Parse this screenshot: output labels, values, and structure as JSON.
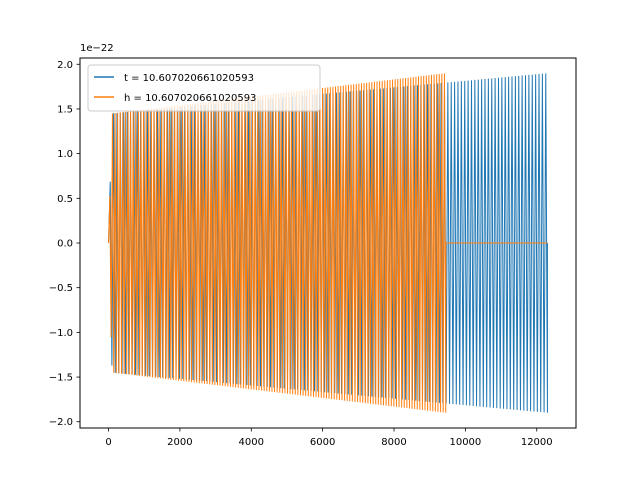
{
  "chart_data": {
    "type": "line",
    "title": "",
    "xlabel": "",
    "ylabel": "",
    "y_offset_label": "1e−22",
    "xlim": [
      -800,
      13100
    ],
    "ylim": [
      -2.07,
      2.07
    ],
    "x_ticks": [
      0,
      2000,
      4000,
      6000,
      8000,
      10000,
      12000
    ],
    "x_tick_labels": [
      "0",
      "2000",
      "4000",
      "6000",
      "8000",
      "10000",
      "12000"
    ],
    "y_ticks": [
      2.0,
      1.5,
      1.0,
      0.5,
      0.0,
      -0.5,
      -1.0,
      -1.5,
      -2.0
    ],
    "y_tick_labels": [
      "2.0",
      "1.5",
      "1.0",
      "0.5",
      "0.0",
      "−0.5",
      "−1.0",
      "−1.5",
      "−2.0"
    ],
    "grid": false,
    "legend_position": "upper-left",
    "series": [
      {
        "name": "t = 10.607020661020593",
        "color": "#1f77b4",
        "x_start": 0,
        "x_end": 12300,
        "envelope": {
          "x": [
            0,
            100,
            12300
          ],
          "amplitude": [
            0,
            1.45,
            1.9
          ]
        },
        "oscillating": true
      },
      {
        "name": "h = 10.607020661020593",
        "color": "#ff7f0e",
        "x_start": 0,
        "x_end": 12300,
        "envelope": {
          "x": [
            0,
            100,
            9450
          ],
          "amplitude": [
            0,
            1.45,
            1.9
          ]
        },
        "zero_after": 9450,
        "oscillating": true
      }
    ]
  }
}
